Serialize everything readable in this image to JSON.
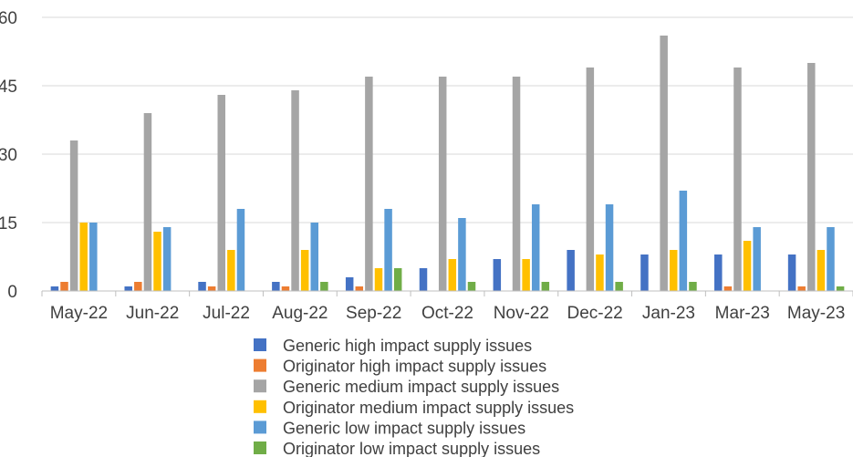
{
  "chart_data": {
    "type": "bar",
    "categories": [
      "May-22",
      "Jun-22",
      "Jul-22",
      "Aug-22",
      "Sep-22",
      "Oct-22",
      "Nov-22",
      "Dec-22",
      "Jan-23",
      "Mar-23",
      "May-23"
    ],
    "ylim": [
      0,
      60
    ],
    "yticks": [
      "0",
      "15",
      "30",
      "45",
      "60"
    ],
    "grid": true,
    "legend_position": "bottom",
    "series": [
      {
        "name": "Generic high impact supply issues",
        "color": "#4472C4",
        "values": [
          1,
          1,
          2,
          2,
          3,
          5,
          7,
          9,
          8,
          8,
          8
        ]
      },
      {
        "name": "Originator high impact supply issues",
        "color": "#ED7D31",
        "values": [
          2,
          2,
          1,
          1,
          1,
          0,
          0,
          0,
          0,
          1,
          1
        ]
      },
      {
        "name": "Generic medium impact supply issues",
        "color": "#A5A5A5",
        "values": [
          33,
          39,
          43,
          44,
          47,
          47,
          47,
          49,
          56,
          49,
          50
        ]
      },
      {
        "name": "Originator medium impact supply issues",
        "color": "#FFC000",
        "values": [
          15,
          13,
          9,
          9,
          5,
          7,
          7,
          8,
          9,
          11,
          9
        ]
      },
      {
        "name": "Generic low impact supply issues",
        "color": "#5B9BD5",
        "values": [
          15,
          14,
          18,
          15,
          18,
          16,
          19,
          19,
          22,
          14,
          14
        ]
      },
      {
        "name": "Originator low impact supply issues",
        "color": "#70AD47",
        "values": [
          0,
          0,
          0,
          2,
          5,
          2,
          2,
          2,
          2,
          0,
          1
        ]
      }
    ]
  }
}
